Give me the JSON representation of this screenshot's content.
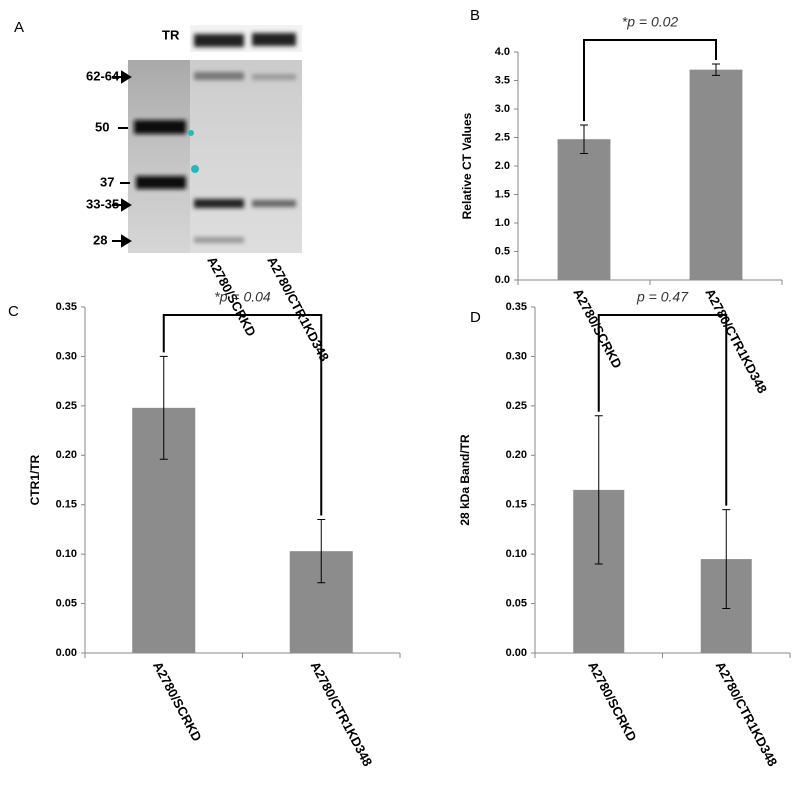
{
  "figure": {
    "panel_labels": [
      "A",
      "B",
      "C",
      "D"
    ]
  },
  "blot": {
    "loading_control": "TR",
    "markers": [
      "62-64",
      "50",
      "37",
      "33-35",
      "28"
    ],
    "lanes": [
      "A2780/SCRKD",
      "A2780/CTR1KD348"
    ]
  },
  "chart_data": [
    {
      "type": "bar",
      "y_label": "Relative CT Values",
      "annotation": "*p = 0.02",
      "categories": [
        "A2780/SCRKD",
        "A2780/CTR1KD348"
      ],
      "values": [
        2.47,
        3.69
      ],
      "errors": [
        0.25,
        0.1
      ],
      "color": "#8c8c8c",
      "ylim": [
        0,
        4
      ],
      "yticks": [
        {
          "value": 0,
          "label": "0.0"
        },
        {
          "value": 0.5,
          "label": "0.5"
        },
        {
          "value": 1,
          "label": "1.0"
        },
        {
          "value": 1.5,
          "label": "1.5"
        },
        {
          "value": 2,
          "label": "2.0"
        },
        {
          "value": 2.5,
          "label": "2.5"
        },
        {
          "value": 3,
          "label": "3.0"
        },
        {
          "value": 3.5,
          "label": "3.5"
        },
        {
          "value": 4,
          "label": "4.0"
        }
      ]
    },
    {
      "type": "bar",
      "y_label": "CTR1/TR",
      "annotation": "*p = 0.04",
      "categories": [
        "A2780/SCRKD",
        "A2780/CTR1KD348"
      ],
      "values": [
        0.248,
        0.103
      ],
      "errors": [
        0.052,
        0.032
      ],
      "color": "#8c8c8c",
      "ylim": [
        0,
        0.35
      ],
      "yticks": [
        {
          "value": 0,
          "label": "0.00"
        },
        {
          "value": 0.05,
          "label": "0.05"
        },
        {
          "value": 0.1,
          "label": "0.10"
        },
        {
          "value": 0.15,
          "label": "0.15"
        },
        {
          "value": 0.2,
          "label": "0.20"
        },
        {
          "value": 0.25,
          "label": "0.25"
        },
        {
          "value": 0.3,
          "label": "0.30"
        },
        {
          "value": 0.35,
          "label": "0.35"
        }
      ]
    },
    {
      "type": "bar",
      "y_label": "28 kDa Band/TR",
      "annotation": "p = 0.47",
      "categories": [
        "A2780/SCRKD",
        "A2780/CTR1KD348"
      ],
      "values": [
        0.165,
        0.095
      ],
      "errors": [
        0.075,
        0.05
      ],
      "color": "#8c8c8c",
      "ylim": [
        0,
        0.35
      ],
      "yticks": [
        {
          "value": 0,
          "label": "0.00"
        },
        {
          "value": 0.05,
          "label": "0.05"
        },
        {
          "value": 0.1,
          "label": "0.10"
        },
        {
          "value": 0.15,
          "label": "0.15"
        },
        {
          "value": 0.2,
          "label": "0.20"
        },
        {
          "value": 0.25,
          "label": "0.25"
        },
        {
          "value": 0.3,
          "label": "0.30"
        },
        {
          "value": 0.35,
          "label": "0.35"
        }
      ]
    }
  ]
}
